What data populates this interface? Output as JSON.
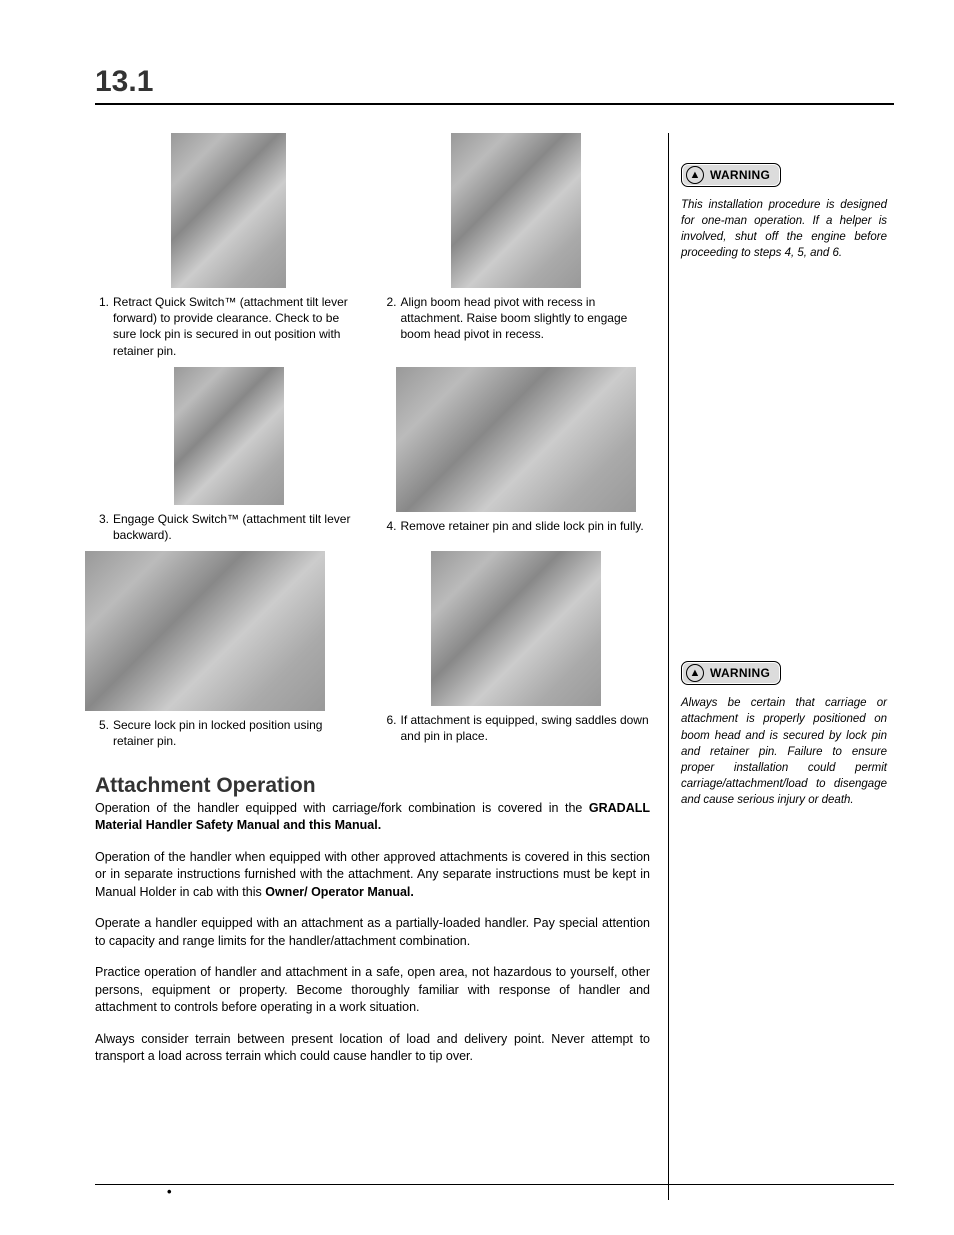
{
  "section_number": "13.1",
  "steps": [
    {
      "n": "1.",
      "text_pre": "Retract Quick Switch™ (attachment tilt lever forward) to provide clearance. Check to be sure lock pin is secured in out position with retainer pin.",
      "img": "a"
    },
    {
      "n": "2.",
      "text_pre": "Align boom head pivot with recess in attachment. Raise boom slightly to engage boom head pivot in recess.",
      "img": "b"
    },
    {
      "n": "3.",
      "text_pre": "Engage Quick Switch™ (attachment tilt lever backward).",
      "img": "c"
    },
    {
      "n": "4.",
      "text_pre": "Remove retainer pin and slide lock pin in fully.",
      "img": "d"
    },
    {
      "n": "5.",
      "text_pre": "Secure lock pin in locked position using retainer pin.",
      "img": "e"
    },
    {
      "n": "6.",
      "text_pre": "If attachment is equipped, swing saddles down and pin in place.",
      "img": "f"
    }
  ],
  "attachment_heading": "Attachment Operation",
  "para1_a": "Operation of the handler equipped with carriage/fork combination is covered in the ",
  "para1_b": "GRADALL Material Handler Safety Manual and this Manual.",
  "para2_a": "Operation of the handler when equipped with other approved attachments is covered in this section or in separate instructions furnished with the attachment. Any separate instructions must be kept in Manual Holder in cab with this ",
  "para2_b": "Owner/ Operator Manual.",
  "para3": "Operate a handler equipped with an attachment as a partially-loaded handler. Pay special attention to capacity and range limits for the handler/attachment combination.",
  "para4": "Practice operation of handler and attachment in a safe, open area, not hazardous to yourself, other persons, equipment or property. Become thoroughly familiar with response of handler and attachment to controls before operating in a work situation.",
  "para5": "Always consider terrain between present location of load and delivery point. Never attempt to transport a load across terrain which could cause handler to tip over.",
  "warning_label": "WARNING",
  "warning1_text": "This installation procedure is designed for one-man operation. If a helper is involved, shut off the engine before proceeding to steps 4, 5, and 6.",
  "warning2_text": "Always be certain that carriage or attachment is properly positioned on boom head and is secured by lock pin and retainer pin. Failure to ensure proper installation could permit carriage/attachment/load to disengage and cause serious injury or death.",
  "footer_dot": "•"
}
